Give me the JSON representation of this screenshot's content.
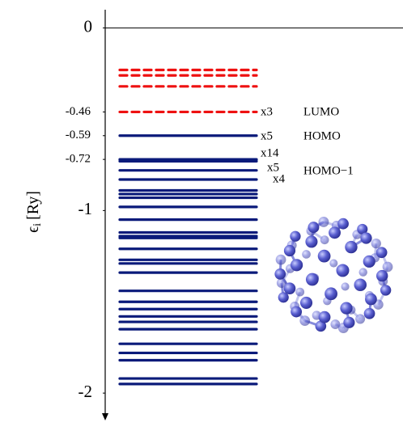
{
  "chart_data": {
    "type": "levels",
    "y_label_symbol": "ϵ",
    "y_label_subscript": "i",
    "y_label_unit": "[Ry]",
    "ylim": [
      -2.15,
      0.1
    ],
    "yticks": [
      0,
      -0.46,
      -0.59,
      -0.72,
      -1,
      -2
    ],
    "series": [
      {
        "color": "#ee1111",
        "dashed": true,
        "values": [
          -0.23,
          -0.26,
          -0.32,
          -0.46
        ]
      },
      {
        "color": "#0a1a7a",
        "dashed": false,
        "values": [
          -0.59,
          -0.72,
          -0.73,
          -0.78,
          -0.83,
          -0.89,
          -0.91,
          -0.93,
          -0.98,
          -1.05,
          -1.12,
          -1.14,
          -1.15,
          -1.21,
          -1.27,
          -1.29,
          -1.34,
          -1.44,
          -1.5,
          -1.54,
          -1.58,
          -1.61,
          -1.65,
          -1.73,
          -1.78,
          -1.82,
          -1.92,
          -1.95
        ]
      }
    ],
    "degeneracy_labels": [
      "x3",
      "x5",
      "x14",
      "x5",
      "x4"
    ],
    "orbital_labels": [
      "LUMO",
      "HOMO",
      "HOMO−1"
    ]
  }
}
